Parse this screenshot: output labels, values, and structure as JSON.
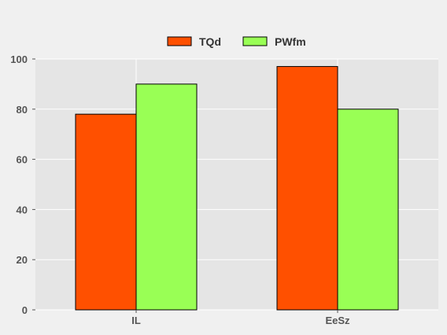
{
  "chart_data": {
    "type": "bar",
    "categories": [
      "IL",
      "EeSz"
    ],
    "series": [
      {
        "name": "TQd",
        "values": [
          78,
          97
        ],
        "color": "#ff5000"
      },
      {
        "name": "PWfm",
        "values": [
          90,
          80
        ],
        "color": "#99ff55"
      }
    ],
    "ylim": [
      0,
      100
    ],
    "yticks": [
      0,
      20,
      40,
      60,
      80,
      100
    ],
    "grid": true,
    "legend_position": "top-center",
    "plot_background": "#e5e5e5",
    "page_background": "#f0f0f0"
  }
}
